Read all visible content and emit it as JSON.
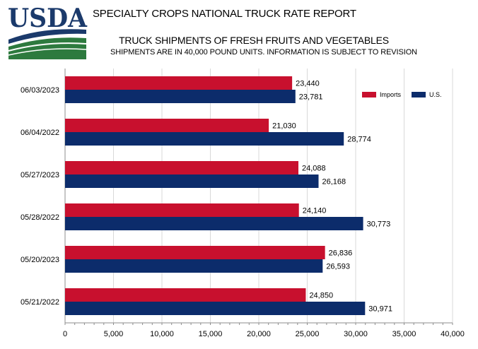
{
  "header": {
    "logo_text": "USDA",
    "report_title": "SPECIALTY CROPS NATIONAL TRUCK RATE REPORT"
  },
  "colors": {
    "imports": "#c8102e",
    "us": "#0c2c6b",
    "logo_blue": "#1b3a6b",
    "logo_green": "#2d7a3e",
    "grid": "#d9d9d9",
    "axis": "#8c8c8c"
  },
  "chart_data": {
    "type": "bar",
    "orientation": "horizontal",
    "title": "TRUCK SHIPMENTS OF FRESH FRUITS AND VEGETABLES",
    "subtitle": "SHIPMENTS ARE IN 40,000 POUND UNITS. INFORMATION IS SUBJECT TO REVISION",
    "categories": [
      "06/03/2023",
      "06/04/2022",
      "05/27/2023",
      "05/28/2022",
      "05/20/2023",
      "05/21/2022"
    ],
    "series": [
      {
        "name": "Imports",
        "values": [
          23440,
          21030,
          24088,
          24140,
          26836,
          24850
        ],
        "labels": [
          "23,440",
          "21,030",
          "24,088",
          "24,140",
          "26,836",
          "24,850"
        ]
      },
      {
        "name": "U.S.",
        "values": [
          23781,
          28774,
          26168,
          30773,
          26593,
          30971
        ],
        "labels": [
          "23,781",
          "28,774",
          "26,168",
          "30,773",
          "26,593",
          "30,971"
        ]
      }
    ],
    "xlim": [
      0,
      40000
    ],
    "xticks": [
      0,
      5000,
      10000,
      15000,
      20000,
      25000,
      30000,
      35000,
      40000
    ],
    "xtick_labels": [
      "0",
      "5,000",
      "10,000",
      "15,000",
      "20,000",
      "25,000",
      "30,000",
      "35,000",
      "40,000"
    ],
    "grid": true,
    "legend_position": "top-right",
    "xlabel": "",
    "ylabel": ""
  }
}
